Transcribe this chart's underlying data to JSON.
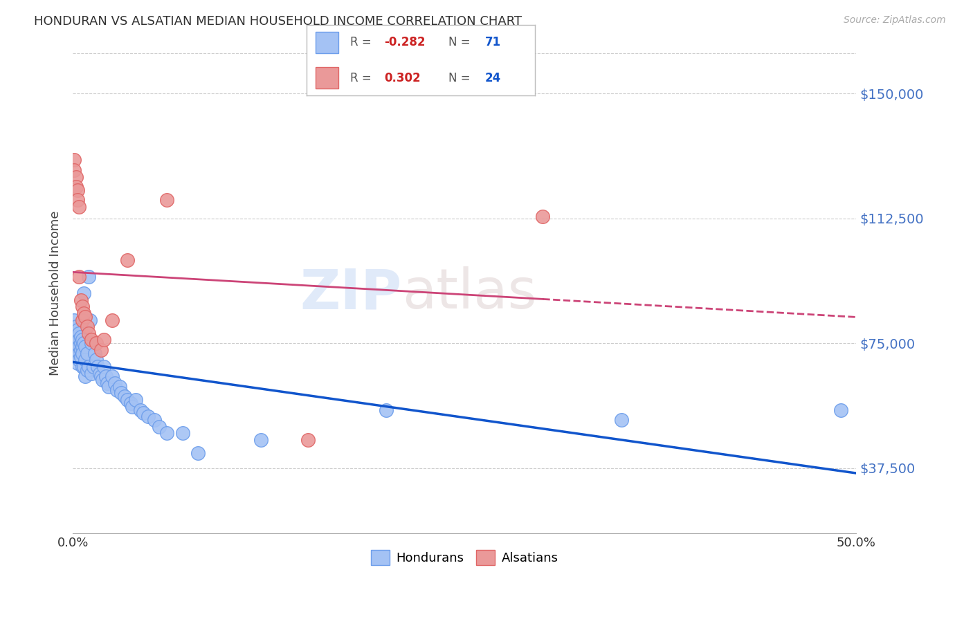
{
  "title": "HONDURAN VS ALSATIAN MEDIAN HOUSEHOLD INCOME CORRELATION CHART",
  "source": "Source: ZipAtlas.com",
  "ylabel": "Median Household Income",
  "yticks": [
    37500,
    75000,
    112500,
    150000
  ],
  "ytick_labels": [
    "$37,500",
    "$75,000",
    "$112,500",
    "$150,000"
  ],
  "xlim": [
    0.0,
    0.5
  ],
  "ylim": [
    18000,
    162000
  ],
  "watermark_zip": "ZIP",
  "watermark_atlas": "atlas",
  "honduran_color": "#a4c2f4",
  "honduran_edge": "#6d9eeb",
  "alsatian_color": "#ea9999",
  "alsatian_edge": "#e06666",
  "honduran_line_color": "#1155cc",
  "alsatian_line_color": "#cc4477",
  "honduran_x": [
    0.001,
    0.001,
    0.001,
    0.002,
    0.002,
    0.002,
    0.002,
    0.003,
    0.003,
    0.003,
    0.003,
    0.003,
    0.004,
    0.004,
    0.004,
    0.004,
    0.004,
    0.005,
    0.005,
    0.005,
    0.005,
    0.006,
    0.006,
    0.006,
    0.006,
    0.007,
    0.007,
    0.007,
    0.008,
    0.008,
    0.008,
    0.009,
    0.009,
    0.01,
    0.01,
    0.011,
    0.012,
    0.012,
    0.013,
    0.014,
    0.015,
    0.016,
    0.017,
    0.018,
    0.019,
    0.02,
    0.021,
    0.022,
    0.023,
    0.025,
    0.027,
    0.028,
    0.03,
    0.031,
    0.033,
    0.035,
    0.037,
    0.038,
    0.04,
    0.043,
    0.045,
    0.048,
    0.052,
    0.055,
    0.06,
    0.07,
    0.08,
    0.12,
    0.2,
    0.35,
    0.49
  ],
  "honduran_y": [
    82000,
    78000,
    75000,
    80000,
    76000,
    74000,
    72000,
    79000,
    77000,
    73000,
    71000,
    69000,
    78000,
    76000,
    74000,
    72000,
    70000,
    77000,
    75000,
    73000,
    71000,
    76000,
    74000,
    72000,
    68000,
    90000,
    75000,
    68000,
    74000,
    70000,
    65000,
    72000,
    67000,
    95000,
    68000,
    82000,
    75000,
    66000,
    68000,
    72000,
    70000,
    68000,
    66000,
    65000,
    64000,
    68000,
    65000,
    63000,
    62000,
    65000,
    63000,
    61000,
    62000,
    60000,
    59000,
    58000,
    57000,
    56000,
    58000,
    55000,
    54000,
    53000,
    52000,
    50000,
    48000,
    48000,
    42000,
    46000,
    55000,
    52000,
    55000
  ],
  "alsatian_x": [
    0.001,
    0.001,
    0.002,
    0.002,
    0.003,
    0.003,
    0.004,
    0.004,
    0.005,
    0.006,
    0.006,
    0.007,
    0.008,
    0.009,
    0.01,
    0.012,
    0.015,
    0.018,
    0.02,
    0.025,
    0.035,
    0.06,
    0.15,
    0.3
  ],
  "alsatian_y": [
    130000,
    127000,
    125000,
    122000,
    121000,
    118000,
    116000,
    95000,
    88000,
    86000,
    82000,
    84000,
    83000,
    80000,
    78000,
    76000,
    75000,
    73000,
    76000,
    82000,
    100000,
    118000,
    46000,
    113000
  ]
}
